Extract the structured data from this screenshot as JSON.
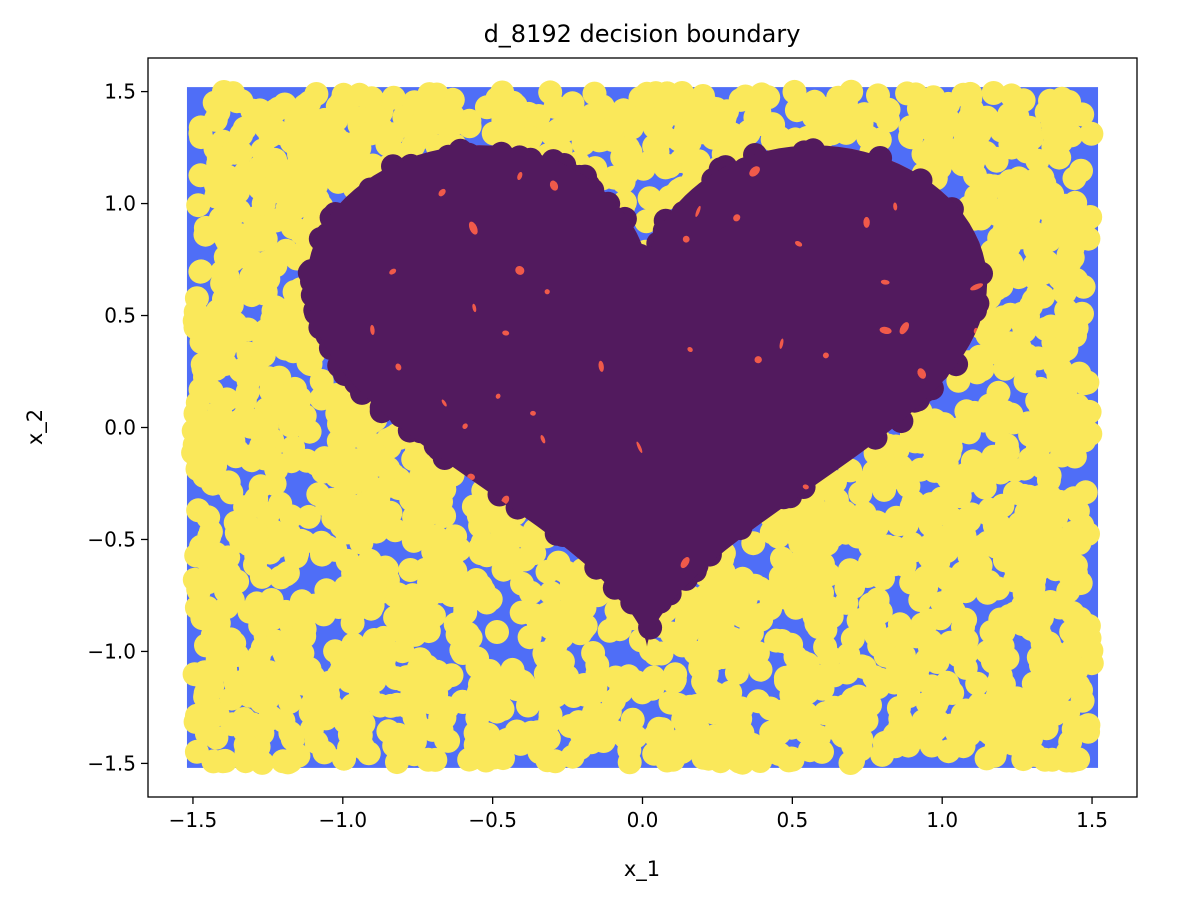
{
  "chart_data": {
    "type": "scatter",
    "title": "d_8192 decision boundary",
    "xlabel": "x_1",
    "ylabel": "x_2",
    "xlim": [
      -1.65,
      1.65
    ],
    "ylim": [
      -1.65,
      1.65
    ],
    "xticks": [
      -1.5,
      -1.0,
      -0.5,
      0.0,
      0.5,
      1.0,
      1.5
    ],
    "xtick_labels": [
      "−1.5",
      "−1.0",
      "−0.5",
      "0.0",
      "0.5",
      "1.0",
      "1.5"
    ],
    "yticks": [
      1.5,
      1.0,
      0.5,
      0.0,
      -0.5,
      -1.0,
      -1.5
    ],
    "ytick_labels": [
      "1.5",
      "1.0",
      "0.5",
      "0.0",
      "−0.5",
      "−1.0",
      "−1.5"
    ],
    "grid": false,
    "background_region": {
      "x_range": [
        -1.52,
        1.52
      ],
      "y_range": [
        -1.52,
        1.52
      ],
      "outside_class_color": "#4f6ef7",
      "inside_class_color": "#f05a4a"
    },
    "class_boundary": "heart",
    "heart_extent": {
      "x": [
        -1.12,
        1.15
      ],
      "y": [
        -0.98,
        1.26
      ]
    },
    "series": [
      {
        "class": 0,
        "color": "#fae85a",
        "region": "outside heart",
        "marker_radius_data": 0.04
      },
      {
        "class": 1,
        "color": "#521a5e",
        "region": "inside heart",
        "marker_radius_data": 0.04
      }
    ],
    "n_points_approx": 8192
  }
}
